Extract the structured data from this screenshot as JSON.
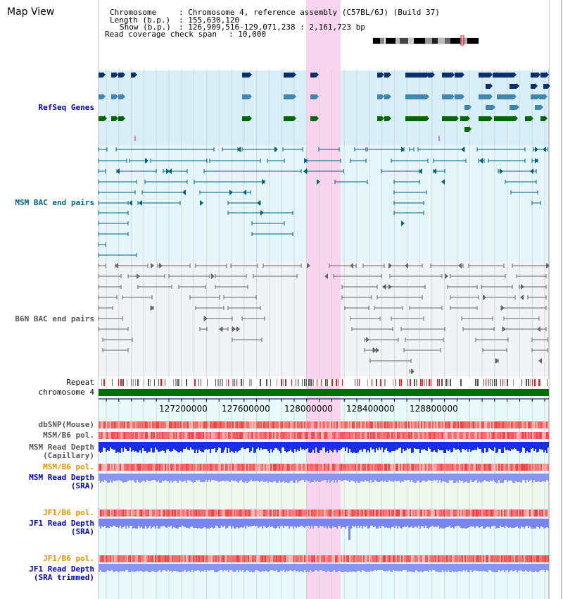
{
  "app": {
    "title": "Map View"
  },
  "info": {
    "chromosome_key": "Chromosome",
    "chromosome_val": ": Chromosome 4, reference assembly (C57BL/6J) (Build 37)",
    "length_key": "Length (b.p.)",
    "length_val": ": 155,630,120",
    "show_key": "Show (b.p.)",
    "show_val": ": 126,909,516-129,071,238 : 2,161,723 bp",
    "coverage_key": "Read coverage check span",
    "coverage_val": ": 10,000"
  },
  "tracks": {
    "refseq": "RefSeq Genes",
    "msm_bac": "MSM BAC end pairs",
    "b6n_bac": "B6N BAC end pairs",
    "repeat": "Repeat",
    "chromosome": "chromosome 4",
    "dbsnp": "dbSNP(Mouse)",
    "msm_b6_pol_1": "MSM/B6 pol.",
    "msm_read_depth_cap_1": "MSM Read Depth",
    "msm_read_depth_cap_2": "(Capillary)",
    "msm_b6_pol_2": "MSM/B6 pol.",
    "msm_read_depth_sra_1": "MSM Read Depth",
    "msm_read_depth_sra_2": "(SRA)",
    "jf1_b6_pol_1": "JF1/B6 pol.",
    "jf1_read_depth_1": "JF1 Read Depth",
    "jf1_read_depth_2": "(SRA)",
    "jf1_b6_pol_2": "JF1/B6 pol.",
    "jf1_read_depth_trim_1": "JF1 Read Depth",
    "jf1_read_depth_trim_2": "(SRA trimmed)"
  },
  "axis": {
    "ticks": [
      "127200000",
      "127600000",
      "128000000",
      "128400000",
      "128800000"
    ]
  },
  "colors": {
    "refseq_bg": "#d8eef8",
    "msm_bg": "#e4f6fa",
    "b6n_bg": "#f2f3f6",
    "highlight": "#f8d4ee",
    "msm_feature": "#00607a",
    "b6n_feature": "#666666",
    "gene_dark": "#0a2f6b",
    "gene_mid": "#3e86b0",
    "gene_green": "#006600",
    "read_depth_capillary": "#1a2fe0",
    "read_depth_sra": "#8a95f0",
    "label_blue": "#0000aa",
    "label_teal": "#006080",
    "label_gray": "#555555",
    "label_orange": "#e09000"
  }
}
